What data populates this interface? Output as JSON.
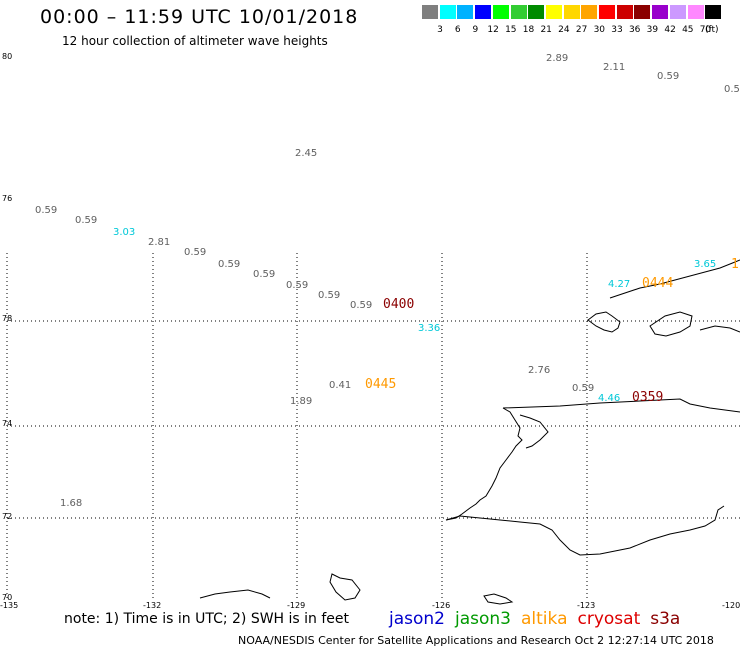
{
  "header": {
    "title": "00:00 – 11:59 UTC 10/01/2018",
    "subtitle": "12 hour collection of altimeter wave heights"
  },
  "color_scale": {
    "labels": [
      "3",
      "6",
      "9",
      "12",
      "15",
      "18",
      "21",
      "24",
      "27",
      "30",
      "33",
      "36",
      "39",
      "42",
      "45",
      "70"
    ],
    "unit": "(ft)",
    "colors": [
      "#7f7f7f",
      "#00ffff",
      "#00b2ff",
      "#0000ff",
      "#00ff00",
      "#32cd32",
      "#008b00",
      "#ffff00",
      "#ffd700",
      "#ffa500",
      "#ff0000",
      "#cd0000",
      "#8b0000",
      "#9900cc",
      "#cc99ff",
      "#ff88ff",
      "#000000"
    ]
  },
  "axes": {
    "lat_labels": [
      "80",
      "76",
      "78",
      "74",
      "72",
      "70"
    ],
    "lon_labels": [
      "-135",
      "-132",
      "-129",
      "-126",
      "-123",
      "-120"
    ]
  },
  "observations": [
    {
      "text": "2.89",
      "color": "#606060"
    },
    {
      "text": "2.11",
      "color": "#606060"
    },
    {
      "text": "0.59",
      "color": "#606060"
    },
    {
      "text": "0.5",
      "color": "#606060"
    },
    {
      "text": "2.45",
      "color": "#606060"
    },
    {
      "text": "0.59",
      "color": "#606060"
    },
    {
      "text": "0.59",
      "color": "#606060"
    },
    {
      "text": "3.03",
      "color": "#00c8d8"
    },
    {
      "text": "2.81",
      "color": "#606060"
    },
    {
      "text": "0.59",
      "color": "#606060"
    },
    {
      "text": "0.59",
      "color": "#606060"
    },
    {
      "text": "0.59",
      "color": "#606060"
    },
    {
      "text": "0.59",
      "color": "#606060"
    },
    {
      "text": "0.59",
      "color": "#606060"
    },
    {
      "text": "0.59",
      "color": "#606060"
    },
    {
      "text": "3.36",
      "color": "#00c8d8"
    },
    {
      "text": "0.41",
      "color": "#606060"
    },
    {
      "text": "1.89",
      "color": "#606060"
    },
    {
      "text": "1.68",
      "color": "#606060"
    },
    {
      "text": "2.76",
      "color": "#606060"
    },
    {
      "text": "0.59",
      "color": "#606060"
    },
    {
      "text": "4.46",
      "color": "#00c8d8"
    },
    {
      "text": "4.27",
      "color": "#00c8d8"
    },
    {
      "text": "3.65",
      "color": "#00c8d8"
    }
  ],
  "pass_times": [
    {
      "text": "0400",
      "color": "#8b0000"
    },
    {
      "text": "0445",
      "color": "#ff9900"
    },
    {
      "text": "0444",
      "color": "#ff9900"
    },
    {
      "text": "0359",
      "color": "#8b0000"
    },
    {
      "text": "1",
      "color": "#ff9900"
    }
  ],
  "footer": {
    "note": "note: 1) Time is in UTC; 2) SWH is in feet",
    "satellites": [
      {
        "name": "jason2",
        "color": "#0000cc"
      },
      {
        "name": "jason3",
        "color": "#009900"
      },
      {
        "name": "altika",
        "color": "#ff9900"
      },
      {
        "name": "cryosat",
        "color": "#dd0000"
      },
      {
        "name": "s3a",
        "color": "#8b0000"
      }
    ],
    "credit": "NOAA/NESDIS Center for Satellite Applications and Research   Oct  2 12:27:14 UTC 2018"
  }
}
